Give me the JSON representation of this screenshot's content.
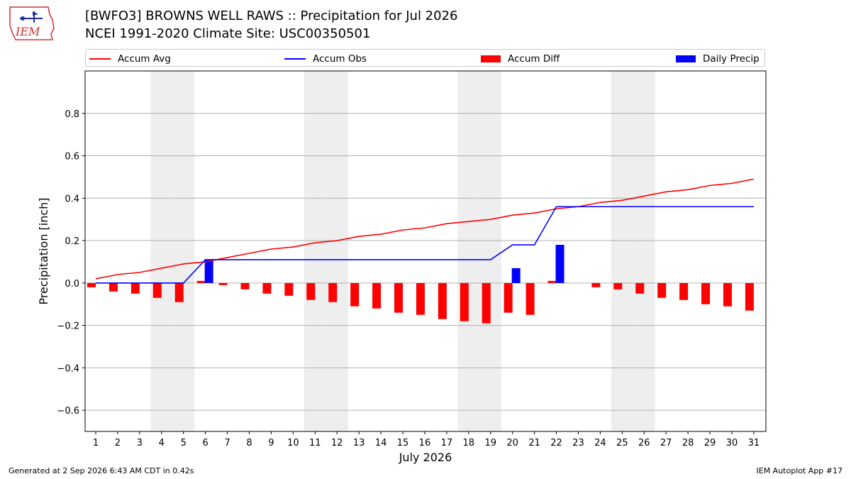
{
  "title_line1": "[BWFO3] BROWNS WELL RAWS :: Precipitation for Jul 2026",
  "title_line2": "NCEI 1991-2020 Climate Site: USC00350501",
  "logo_text": "IEM",
  "footer_left": "Generated at 2 Sep 2026 6:43 AM CDT in 0.42s",
  "footer_right": "IEM Autoplot App #17",
  "legend": {
    "accum_avg": "Accum Avg",
    "accum_obs": "Accum Obs",
    "accum_diff": "Accum Diff",
    "daily_precip": "Daily Precip"
  },
  "colors": {
    "avg": "#ff0000",
    "obs": "#0000ff",
    "diff": "#ff0000",
    "daily": "#0000ff",
    "weekend": "#eeeeee",
    "grid": "#b0b0b0"
  },
  "chart_data": {
    "type": "bar",
    "xlabel": "July 2026",
    "ylabel": "Precipitation [inch]",
    "ylim": [
      -0.7,
      1.0
    ],
    "yticks": [
      -0.6,
      -0.4,
      -0.2,
      0.0,
      0.2,
      0.4,
      0.6,
      0.8
    ],
    "ytick_labels": [
      "−0.6",
      "−0.4",
      "−0.2",
      "0.0",
      "0.2",
      "0.4",
      "0.6",
      "0.8"
    ],
    "grid": true,
    "legend_position": "top",
    "days": [
      1,
      2,
      3,
      4,
      5,
      6,
      7,
      8,
      9,
      10,
      11,
      12,
      13,
      14,
      15,
      16,
      17,
      18,
      19,
      20,
      21,
      22,
      23,
      24,
      25,
      26,
      27,
      28,
      29,
      30,
      31
    ],
    "weekend_days": [
      4,
      5,
      11,
      12,
      18,
      19,
      25,
      26
    ],
    "series": [
      {
        "name": "Accum Avg",
        "kind": "line",
        "values": [
          0.02,
          0.04,
          0.05,
          0.07,
          0.09,
          0.1,
          0.12,
          0.14,
          0.16,
          0.17,
          0.19,
          0.2,
          0.22,
          0.23,
          0.25,
          0.26,
          0.28,
          0.29,
          0.3,
          0.32,
          0.33,
          0.35,
          0.36,
          0.38,
          0.39,
          0.41,
          0.43,
          0.44,
          0.46,
          0.47,
          0.49
        ]
      },
      {
        "name": "Accum Obs",
        "kind": "line",
        "values": [
          0,
          0,
          0,
          0,
          0,
          0.11,
          0.11,
          0.11,
          0.11,
          0.11,
          0.11,
          0.11,
          0.11,
          0.11,
          0.11,
          0.11,
          0.11,
          0.11,
          0.11,
          0.18,
          0.18,
          0.36,
          0.36,
          0.36,
          0.36,
          0.36,
          0.36,
          0.36,
          0.36,
          0.36,
          0.36
        ]
      },
      {
        "name": "Accum Diff",
        "kind": "bar",
        "values": [
          -0.02,
          -0.04,
          -0.05,
          -0.07,
          -0.09,
          0.01,
          -0.01,
          -0.03,
          -0.05,
          -0.06,
          -0.08,
          -0.09,
          -0.11,
          -0.12,
          -0.14,
          -0.15,
          -0.17,
          -0.18,
          -0.19,
          -0.14,
          -0.15,
          0.01,
          0.0,
          -0.02,
          -0.03,
          -0.05,
          -0.07,
          -0.08,
          -0.1,
          -0.11,
          -0.13
        ]
      },
      {
        "name": "Daily Precip",
        "kind": "bar",
        "values": [
          0,
          0,
          0,
          0,
          0,
          0.11,
          0,
          0,
          0,
          0,
          0,
          0,
          0,
          0,
          0,
          0,
          0,
          0,
          0,
          0.07,
          0,
          0.18,
          0,
          0,
          0,
          0,
          0,
          0,
          0,
          0,
          0
        ]
      }
    ]
  }
}
